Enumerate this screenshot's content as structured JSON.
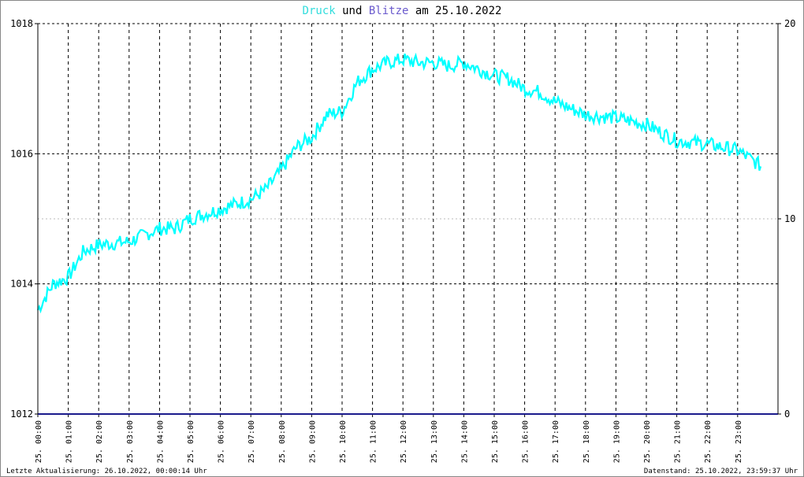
{
  "title": {
    "part1": "Druck",
    "part2": " und ",
    "part3": "Blitze",
    "part4": " am 25.10.2022"
  },
  "footer": {
    "left": "Letzte Aktualisierung: 26.10.2022, 00:00:14 Uhr",
    "right": "Datenstand: 25.10.2022, 23:59:37 Uhr"
  },
  "colors": {
    "pressure": "#00ffff",
    "lightning": "#1a1a8c",
    "title_druck": "#33dddd",
    "title_blitze": "#6a5acd",
    "grid": "#000000",
    "border": "#888888"
  },
  "chart_data": {
    "type": "line",
    "x_start": "25. 00:00",
    "x_end": "25. 23:59",
    "xtick_labels": [
      "25. 00:00",
      "25. 01:00",
      "25. 02:00",
      "25. 03:00",
      "25. 04:00",
      "25. 05:00",
      "25. 06:00",
      "25. 07:00",
      "25. 08:00",
      "25. 09:00",
      "25. 10:00",
      "25. 11:00",
      "25. 12:00",
      "25. 13:00",
      "25. 14:00",
      "25. 15:00",
      "25. 16:00",
      "25. 17:00",
      "25. 18:00",
      "25. 19:00",
      "25. 20:00",
      "25. 21:00",
      "25. 22:00",
      "25. 23:00"
    ],
    "y_left": {
      "ticks": [
        "1012",
        "1014",
        "1016",
        "1018"
      ],
      "range": [
        1012,
        1018
      ]
    },
    "y_right": {
      "ticks": [
        "0",
        "10",
        "20"
      ],
      "range": [
        0,
        20
      ]
    },
    "grid": true,
    "series": [
      {
        "name": "Druck",
        "axis": "left",
        "x_hours": [
          0,
          0.5,
          1,
          1.5,
          2,
          3,
          4,
          4.5,
          5,
          6,
          7,
          7.5,
          8,
          8.5,
          9,
          9.5,
          10,
          10.5,
          11,
          11.5,
          12,
          12.5,
          13,
          13.5,
          14,
          14.5,
          15,
          15.5,
          16,
          16.5,
          17,
          18,
          19,
          20,
          21,
          22,
          23,
          23.8
        ],
        "values": [
          1013.6,
          1014.0,
          1014.1,
          1014.5,
          1014.6,
          1014.65,
          1014.85,
          1014.85,
          1015.0,
          1015.15,
          1015.3,
          1015.45,
          1015.75,
          1016.1,
          1016.25,
          1016.6,
          1016.65,
          1017.1,
          1017.3,
          1017.4,
          1017.45,
          1017.4,
          1017.4,
          1017.35,
          1017.4,
          1017.3,
          1017.2,
          1017.15,
          1017.0,
          1016.95,
          1016.8,
          1016.6,
          1016.55,
          1016.45,
          1016.2,
          1016.15,
          1016.05,
          1015.8
        ]
      },
      {
        "name": "Blitze",
        "axis": "right",
        "x_hours": [
          0,
          24
        ],
        "values": [
          0,
          0
        ]
      }
    ]
  }
}
